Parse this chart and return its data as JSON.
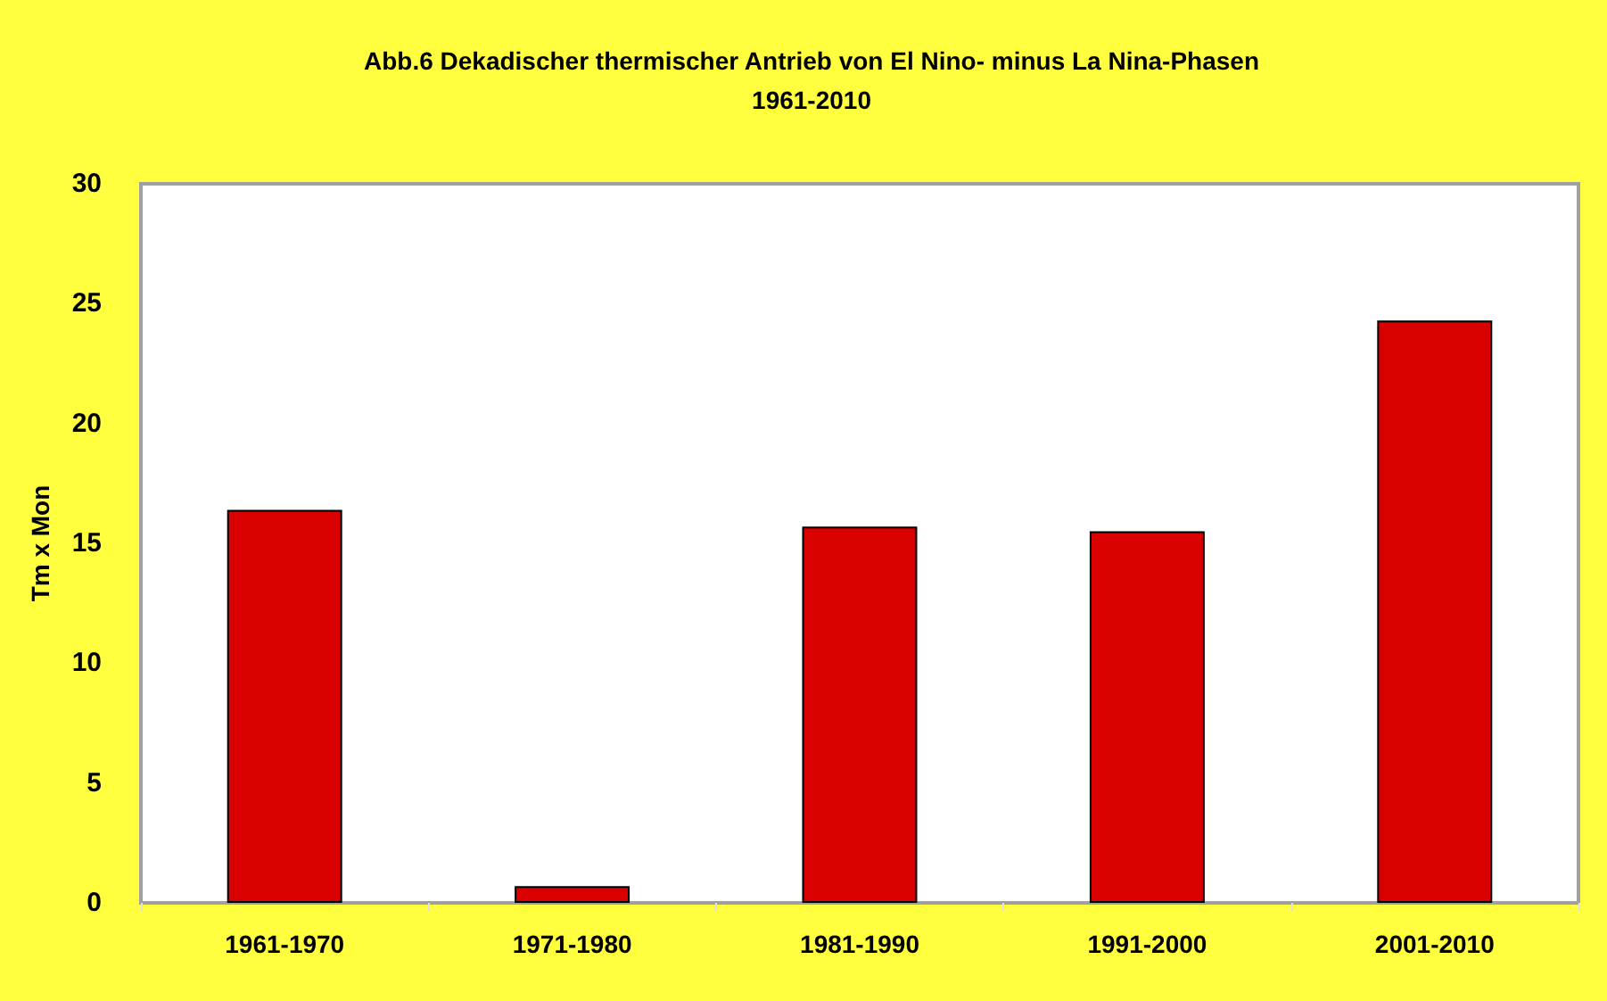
{
  "chart_data": {
    "type": "bar",
    "title": "Abb.6 Dekadischer thermischer Antrieb von El Nino- minus La Nina-Phasen\n1961-2010",
    "ylabel": "Tm x Mon",
    "categories": [
      "1961-1970",
      "1971-1980",
      "1981-1990",
      "1991-2000",
      "2001-2010"
    ],
    "values": [
      16.4,
      0.7,
      15.7,
      15.5,
      24.3
    ],
    "color": "#d90000",
    "ylim": [
      0,
      30
    ],
    "yticks": [
      0,
      5,
      10,
      15,
      20,
      25,
      30
    ],
    "grid": false
  }
}
